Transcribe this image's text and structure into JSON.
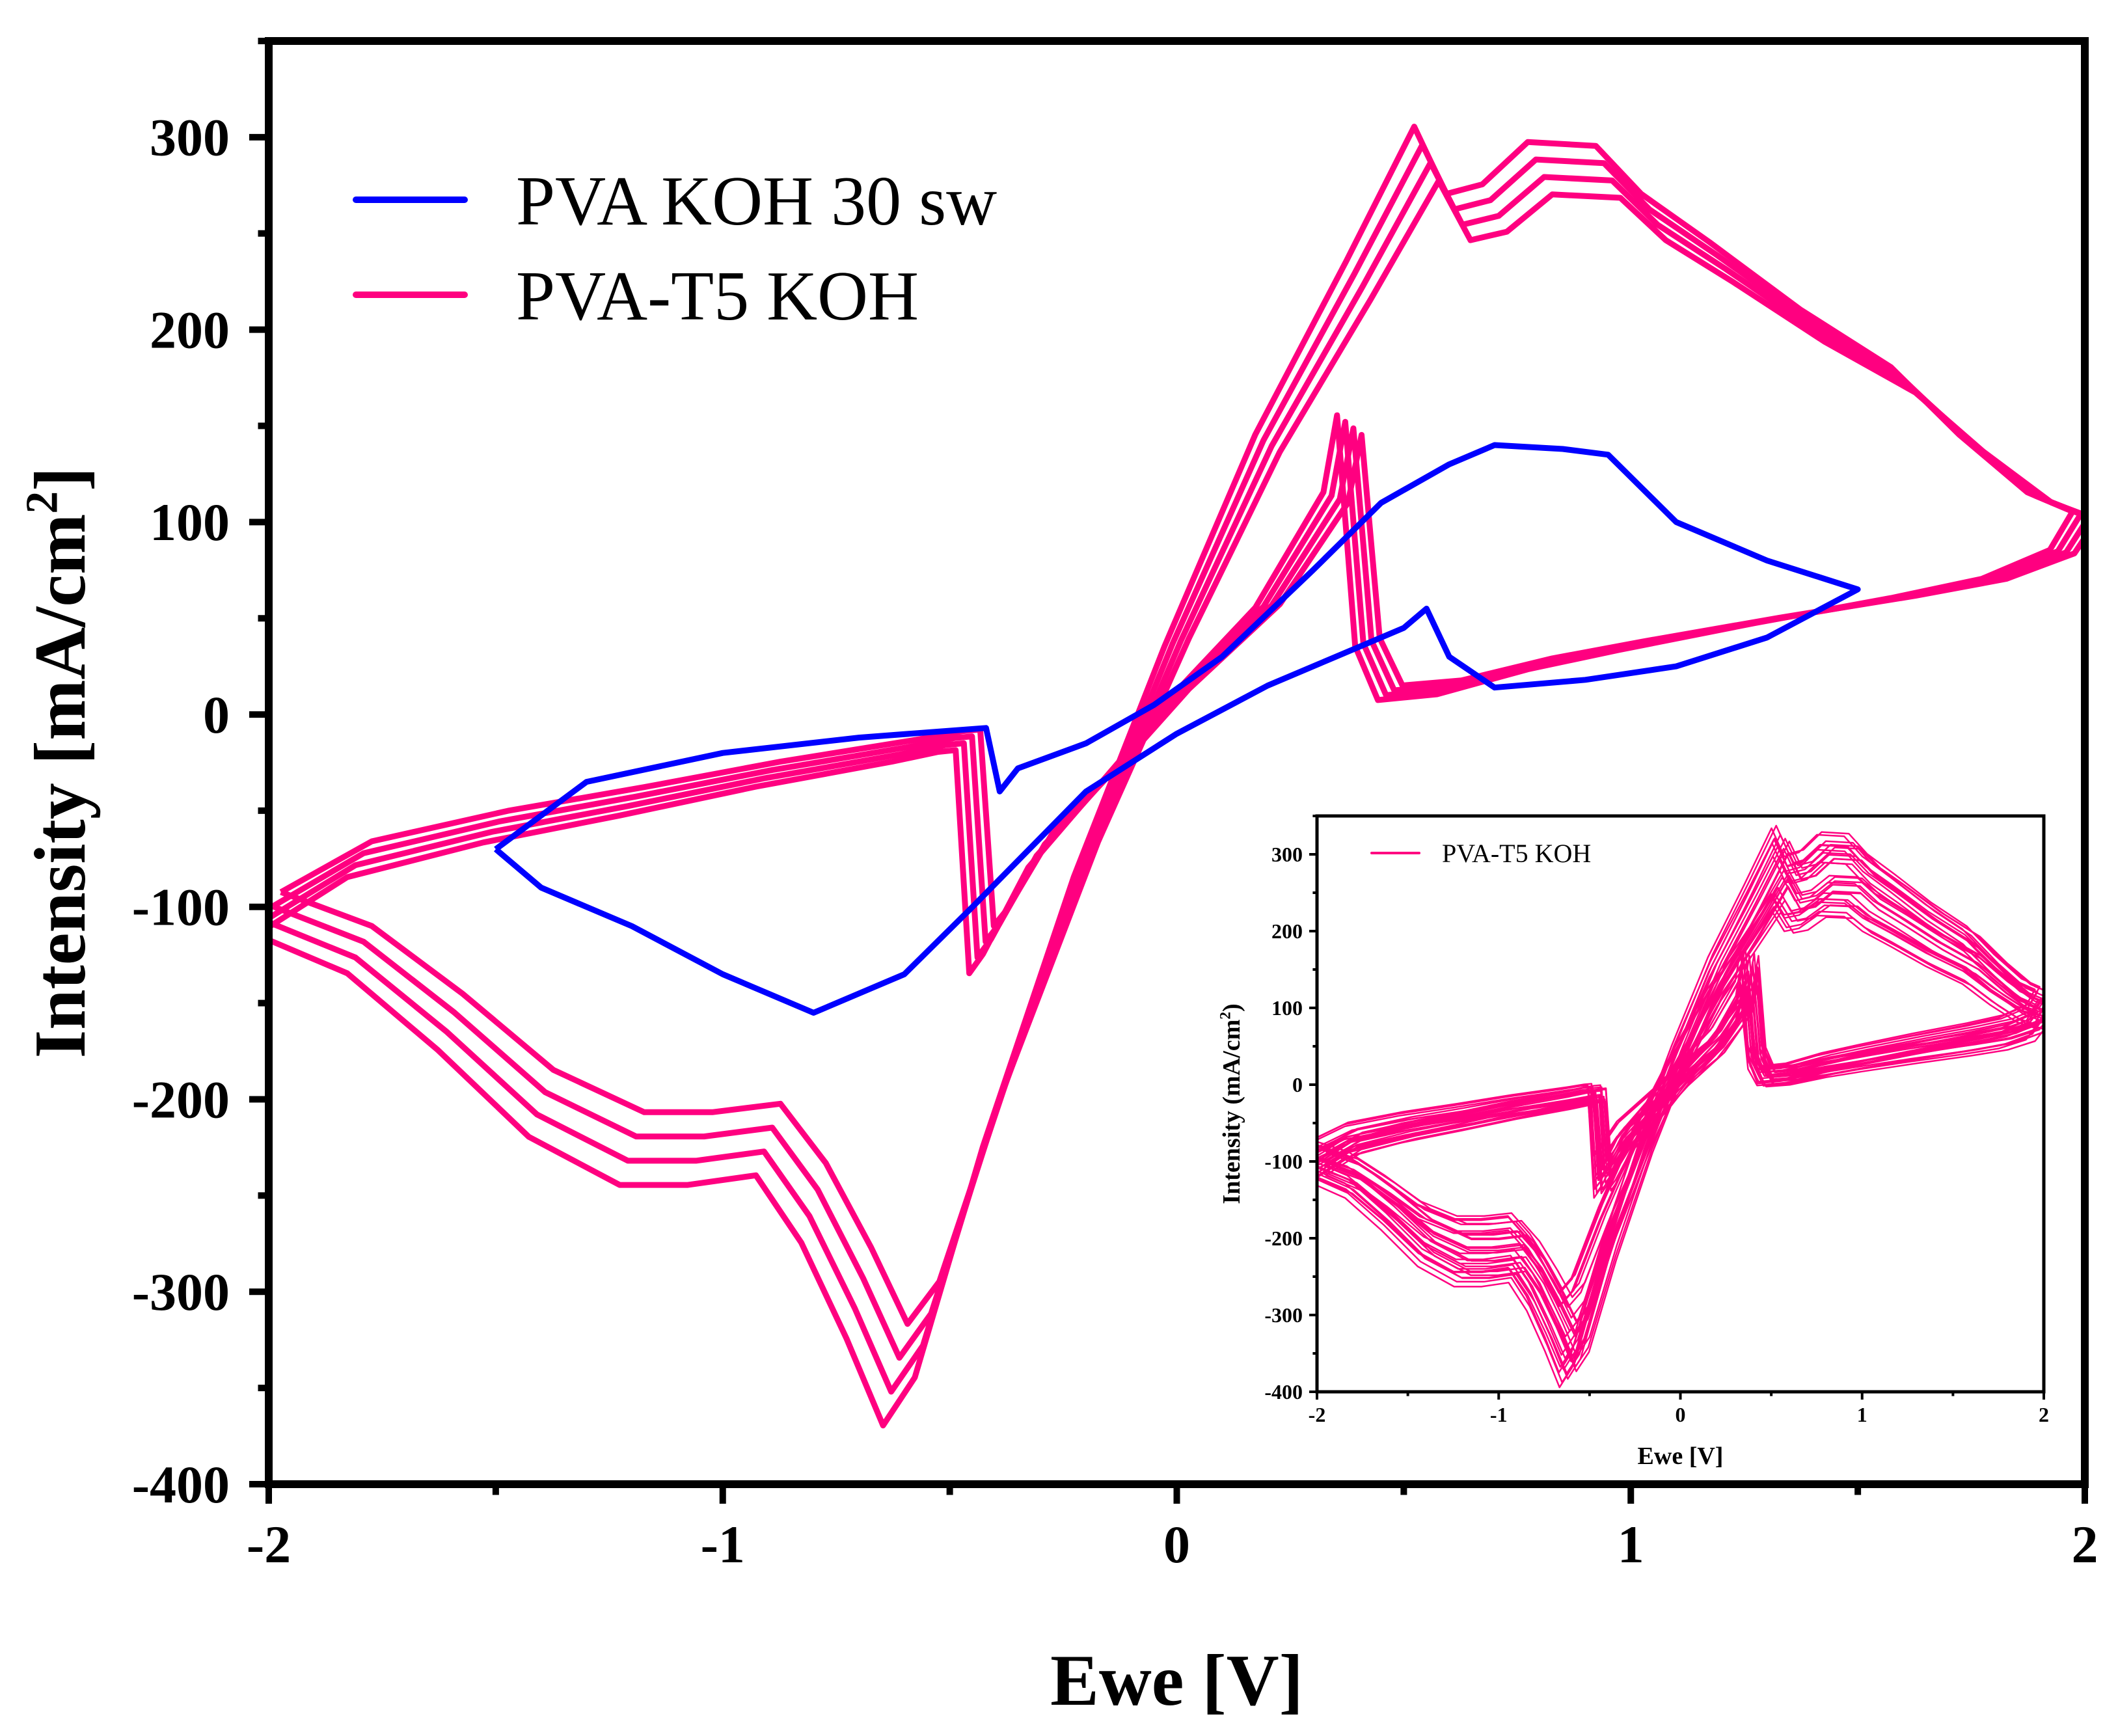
{
  "chart_data": [
    {
      "type": "line",
      "title": "",
      "xlabel": "Ewe [V]",
      "ylabel": "Intensity [mA/cm²]",
      "ylabel_main": "Intensity [mA/cm",
      "ylabel_sup": "2",
      "ylabel_end": "]",
      "xlim": [
        -2,
        2
      ],
      "ylim": [
        -400,
        350
      ],
      "xticks": [
        "-2",
        "-1",
        "0",
        "1",
        "2"
      ],
      "xtick_values": [
        -2,
        -1,
        0,
        1,
        2
      ],
      "yticks": [
        "-400",
        "-300",
        "-200",
        "-100",
        "0",
        "100",
        "200",
        "300"
      ],
      "ytick_values": [
        -400,
        -300,
        -200,
        -100,
        0,
        100,
        200,
        300
      ],
      "grid": false,
      "legend_position": "top-left",
      "series": [
        {
          "name": "PVA KOH 30 sw",
          "color": "#0000ff",
          "points": [
            [
              -1.5,
              -70
            ],
            [
              -1.3,
              -35
            ],
            [
              -1.0,
              -20
            ],
            [
              -0.7,
              -12
            ],
            [
              -0.42,
              -7
            ],
            [
              -0.39,
              -40
            ],
            [
              -0.35,
              -28
            ],
            [
              -0.2,
              -15
            ],
            [
              -0.05,
              5
            ],
            [
              0.1,
              30
            ],
            [
              0.3,
              75
            ],
            [
              0.45,
              110
            ],
            [
              0.6,
              130
            ],
            [
              0.7,
              140
            ],
            [
              0.85,
              138
            ],
            [
              0.95,
              135
            ],
            [
              1.1,
              100
            ],
            [
              1.3,
              80
            ],
            [
              1.5,
              65
            ],
            [
              1.3,
              40
            ],
            [
              1.1,
              25
            ],
            [
              0.9,
              18
            ],
            [
              0.7,
              14
            ],
            [
              0.6,
              30
            ],
            [
              0.55,
              55
            ],
            [
              0.5,
              45
            ],
            [
              0.4,
              35
            ],
            [
              0.2,
              15
            ],
            [
              0,
              -10
            ],
            [
              -0.2,
              -40
            ],
            [
              -0.45,
              -100
            ],
            [
              -0.6,
              -135
            ],
            [
              -0.8,
              -155
            ],
            [
              -1.0,
              -135
            ],
            [
              -1.2,
              -110
            ],
            [
              -1.4,
              -90
            ],
            [
              -1.5,
              -70
            ]
          ]
        },
        {
          "name": "PVA-T5 KOH",
          "color": "#ff0080",
          "cycles_shown": 4,
          "points": [
            [
              -2,
              -110
            ],
            [
              -1.8,
              -80
            ],
            [
              -1.5,
              -62
            ],
            [
              -1.2,
              -48
            ],
            [
              -0.9,
              -33
            ],
            [
              -0.6,
              -20
            ],
            [
              -0.5,
              -15
            ],
            [
              -0.46,
              -14
            ],
            [
              -0.43,
              -130
            ],
            [
              -0.4,
              -120
            ],
            [
              -0.3,
              -75
            ],
            [
              -0.1,
              -20
            ],
            [
              0,
              10
            ],
            [
              0.2,
              60
            ],
            [
              0.35,
              120
            ],
            [
              0.38,
              160
            ],
            [
              0.4,
              100
            ],
            [
              0.42,
              40
            ],
            [
              0.47,
              12
            ],
            [
              0.6,
              15
            ],
            [
              0.8,
              28
            ],
            [
              1.0,
              38
            ],
            [
              1.3,
              52
            ],
            [
              1.6,
              65
            ],
            [
              1.8,
              75
            ],
            [
              1.95,
              90
            ],
            [
              2,
              110
            ],
            [
              1.9,
              120
            ],
            [
              1.75,
              150
            ],
            [
              1.6,
              185
            ],
            [
              1.4,
              215
            ],
            [
              1.2,
              250
            ],
            [
              1.05,
              275
            ],
            [
              0.95,
              300
            ],
            [
              0.8,
              302
            ],
            [
              0.7,
              280
            ],
            [
              0.62,
              275
            ],
            [
              0.55,
              310
            ],
            [
              0.4,
              240
            ],
            [
              0.2,
              150
            ],
            [
              0,
              40
            ],
            [
              -0.2,
              -80
            ],
            [
              -0.4,
              -220
            ],
            [
              -0.55,
              -340
            ],
            [
              -0.62,
              -365
            ],
            [
              -0.7,
              -320
            ],
            [
              -0.8,
              -270
            ],
            [
              -0.9,
              -235
            ],
            [
              -1.05,
              -240
            ],
            [
              -1.2,
              -240
            ],
            [
              -1.4,
              -215
            ],
            [
              -1.6,
              -170
            ],
            [
              -1.8,
              -130
            ],
            [
              -2,
              -110
            ]
          ]
        }
      ]
    },
    {
      "type": "line",
      "title": "",
      "xlabel": "Ewe [V]",
      "ylabel_main": "Intensity (mA/cm",
      "ylabel_sup": "2",
      "ylabel_end": ")",
      "xlim": [
        -2,
        2
      ],
      "ylim": [
        -400,
        350
      ],
      "xticks": [
        "-2",
        "-1",
        "0",
        "1",
        "2"
      ],
      "xtick_values": [
        -2,
        -1,
        0,
        1,
        2
      ],
      "yticks": [
        "-400",
        "-300",
        "-200",
        "-100",
        "0",
        "100",
        "200",
        "300"
      ],
      "ytick_values": [
        -400,
        -300,
        -200,
        -100,
        0,
        100,
        200,
        300
      ],
      "grid": false,
      "legend_position": "top-left",
      "series": [
        {
          "name": "PVA-T5 KOH",
          "color": "#ff0080",
          "cycles_shown": 30,
          "same_shape_as": "main PVA-T5 KOH"
        }
      ]
    }
  ]
}
